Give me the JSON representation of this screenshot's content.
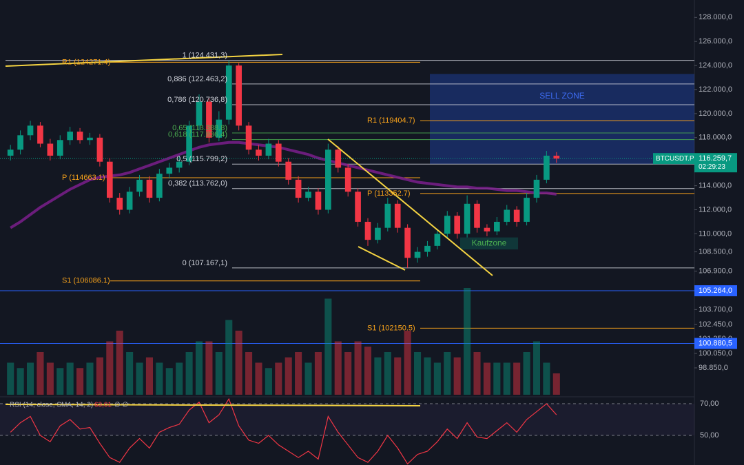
{
  "chart_data": [
    {
      "type": "candlestick",
      "open": [
        116500,
        117000,
        118200,
        119000,
        117500,
        116500,
        117800,
        118500,
        117800,
        118000,
        116000,
        113000,
        112000,
        113500,
        114500,
        113000,
        115000,
        115500,
        116000,
        119000,
        121000,
        118000,
        119500,
        124000,
        119000,
        117000,
        116500,
        117500,
        116000,
        114500,
        113000,
        113500,
        112000,
        117000,
        115500,
        113500,
        111000,
        109500,
        110500,
        112500,
        110500,
        108000,
        108500,
        109000,
        110000,
        111500,
        110000,
        112500,
        110500,
        110200,
        111000,
        112000,
        111000,
        113000,
        114500,
        116500
      ],
      "high": [
        117400,
        118600,
        119400,
        119300,
        117900,
        118200,
        118900,
        118800,
        118400,
        118300,
        116300,
        113400,
        113900,
        114900,
        114800,
        115400,
        115900,
        116500,
        119400,
        121600,
        121300,
        120200,
        124431.3,
        124200,
        119300,
        117400,
        117900,
        117800,
        116300,
        114800,
        113900,
        113800,
        117500,
        117300,
        115800,
        113800,
        111300,
        110900,
        113000,
        112800,
        110800,
        108900,
        109400,
        110400,
        111900,
        111800,
        113200,
        112800,
        110800,
        111400,
        112400,
        112300,
        113400,
        114900,
        116900,
        116800
      ],
      "low": [
        116100,
        116600,
        117800,
        117200,
        116100,
        116200,
        117400,
        117500,
        117400,
        115600,
        112600,
        111600,
        111700,
        113100,
        112600,
        112700,
        114600,
        115100,
        115700,
        118600,
        117600,
        117700,
        119100,
        118600,
        116600,
        116100,
        116200,
        115600,
        114100,
        112600,
        112700,
        111600,
        111700,
        115100,
        113100,
        110600,
        109000,
        109200,
        110200,
        110100,
        107167.1,
        107600,
        108100,
        108700,
        109600,
        109600,
        109700,
        110100,
        109800,
        109900,
        110700,
        110600,
        110700,
        112600,
        114200,
        115900
      ],
      "close": [
        117000,
        118200,
        119000,
        117500,
        116500,
        117800,
        118500,
        117800,
        118000,
        116000,
        113000,
        112000,
        113500,
        114500,
        113000,
        115000,
        115500,
        116000,
        119000,
        121000,
        118000,
        119500,
        124000,
        119000,
        117000,
        116500,
        117500,
        116000,
        114500,
        113000,
        113500,
        112000,
        117000,
        115500,
        113500,
        111000,
        109500,
        110500,
        112500,
        110500,
        108000,
        108500,
        109000,
        110000,
        111500,
        110000,
        112500,
        110500,
        110200,
        111000,
        112000,
        111000,
        113000,
        114500,
        116500,
        116259.7
      ],
      "volume": [
        3,
        2.5,
        3,
        4,
        3,
        2.5,
        3,
        2.5,
        3,
        3.5,
        5,
        6,
        4,
        3,
        3.5,
        3,
        2.5,
        3,
        4,
        5,
        5,
        4,
        7,
        6,
        4,
        3,
        2.5,
        3,
        3.5,
        4,
        3,
        4,
        9,
        5,
        4,
        5,
        4.5,
        3.5,
        4,
        3.5,
        6,
        4,
        3.5,
        3,
        4,
        3.5,
        10,
        4,
        3,
        3,
        3,
        3,
        4,
        5,
        3,
        2
      ],
      "ma": [
        110500,
        111000,
        111600,
        112200,
        112700,
        113200,
        113700,
        114100,
        114500,
        114700,
        114800,
        114900,
        115100,
        115400,
        115700,
        116000,
        116300,
        116600,
        116900,
        117200,
        117400,
        117500,
        117600,
        117600,
        117500,
        117400,
        117300,
        117200,
        117000,
        116800,
        116600,
        116300,
        116100,
        115900,
        115700,
        115500,
        115300,
        115100,
        114900,
        114700,
        114500,
        114300,
        114200,
        114100,
        114000,
        113900,
        113900,
        113800,
        113800,
        113700,
        113600,
        113600,
        113500,
        113400,
        113400,
        113300
      ],
      "up_color": "#089981",
      "down_color": "#f23645",
      "ma_color": "#7b1f8c",
      "ylim": [
        96500,
        129450
      ],
      "yticks": [
        {
          "value": 128000,
          "label": "128.000,0"
        },
        {
          "value": 126000,
          "label": "126.000,0"
        },
        {
          "value": 124000,
          "label": "124.000,0"
        },
        {
          "value": 122000,
          "label": "122.000,0"
        },
        {
          "value": 120000,
          "label": "120.000,0"
        },
        {
          "value": 118000,
          "label": "118.000,0"
        },
        {
          "value": 114000,
          "label": "114.000,0"
        },
        {
          "value": 112000,
          "label": "112.000,0"
        },
        {
          "value": 110000,
          "label": "110.000,0"
        },
        {
          "value": 108500,
          "label": "108.500,0"
        },
        {
          "value": 106900,
          "label": "106.900,0"
        },
        {
          "value": 103700,
          "label": "103.700,0"
        },
        {
          "value": 102450,
          "label": "102.450,0"
        },
        {
          "value": 101250,
          "label": "101.250,0"
        },
        {
          "value": 100050,
          "label": "100.050,0"
        },
        {
          "value": 98850,
          "label": "98.850,0"
        }
      ],
      "fib_levels": [
        {
          "label": "1 (124.431,3)",
          "value": 124431.3,
          "color": "#d1d4dc"
        },
        {
          "label": "0,886 (122.463,2)",
          "value": 122463.2,
          "color": "#d1d4dc"
        },
        {
          "label": "0,786 (120.736,8)",
          "value": 120736.8,
          "color": "#d1d4dc"
        },
        {
          "label": "0,65 (118.388,8)",
          "value": 118388.8,
          "color": "#4caf50"
        },
        {
          "label": "0,618 (117.836,4)",
          "value": 117836.4,
          "color": "#4caf50"
        },
        {
          "label": "0,5 (115.799,2)",
          "value": 115799.2,
          "color": "#d1d4dc"
        },
        {
          "label": "0,382 (113.762,0)",
          "value": 113762,
          "color": "#d1d4dc"
        },
        {
          "label": "0 (107.167,1)",
          "value": 107167.1,
          "color": "#d1d4dc"
        }
      ],
      "pivots_left": [
        {
          "label": "R1 (124271.4)",
          "value": 124271.4
        },
        {
          "label": "P (114663.1)",
          "value": 114663.1
        },
        {
          "label": "S1 (106086.1)",
          "value": 106086.1
        }
      ],
      "pivots_right": [
        {
          "label": "R1 (119404.7)",
          "value": 119404.7
        },
        {
          "label": "P (113352.7)",
          "value": 113352.7
        },
        {
          "label": "S1 (102150.5)",
          "value": 102150.5
        }
      ],
      "pivot_color": "#f7a21b",
      "price_lines": [
        {
          "value": 105264,
          "label": "105.264,0"
        },
        {
          "value": 100880.5,
          "label": "100.880,5"
        }
      ],
      "price_line_color": "#2962ff",
      "last_price": {
        "name": "BTCUSDT.P",
        "value": 116259.7,
        "label": "116.259,7",
        "countdown": "02:29:23"
      },
      "sell_zone": {
        "label": "SELL ZONE",
        "top": 123300,
        "bottom": 115800
      },
      "buy_zone": {
        "label": "Kaufzone",
        "top": 109700,
        "bottom": 108700
      }
    },
    {
      "type": "line",
      "title": "RSI (14, close, SMA, 14, 2)",
      "value_label": "63,01",
      "status": "∅  ∅",
      "values": [
        52,
        58,
        62,
        50,
        46,
        56,
        60,
        54,
        55,
        45,
        36,
        33,
        42,
        48,
        42,
        52,
        55,
        57,
        66,
        71,
        58,
        63,
        73,
        56,
        47,
        45,
        50,
        44,
        40,
        36,
        40,
        35,
        62,
        52,
        44,
        36,
        33,
        40,
        50,
        42,
        32,
        38,
        40,
        46,
        54,
        48,
        58,
        49,
        48,
        53,
        58,
        52,
        60,
        65,
        70,
        63.01
      ],
      "color": "#f23645",
      "ylim": [
        31.3,
        73.5
      ],
      "yticks": [
        {
          "value": 70,
          "label": "70,00"
        },
        {
          "value": 50,
          "label": "50,00"
        }
      ]
    }
  ]
}
